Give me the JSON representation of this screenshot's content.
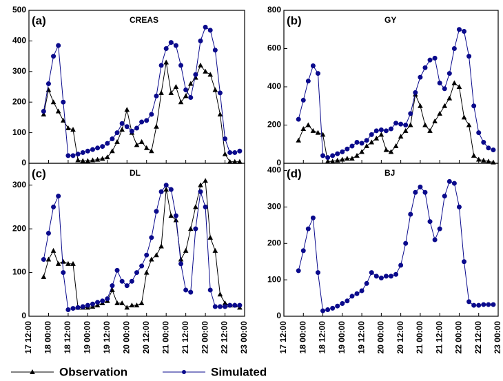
{
  "chart_data": [
    {
      "type": "line",
      "label": "(a)",
      "title": "CREAS",
      "x": [
        17.875,
        18,
        18.125,
        18.25,
        18.375,
        18.5,
        18.625,
        18.75,
        18.875,
        19,
        19.125,
        19.25,
        19.375,
        19.5,
        19.625,
        19.75,
        19.875,
        20,
        20.125,
        20.25,
        20.375,
        20.5,
        20.625,
        20.75,
        20.875,
        21,
        21.125,
        21.25,
        21.375,
        21.5,
        21.625,
        21.75,
        21.875,
        22,
        22.125,
        22.25,
        22.375,
        22.5,
        22.625,
        22.75,
        22.875
      ],
      "xlim": [
        17.5,
        23
      ],
      "xticks": [
        17.5,
        18,
        18.5,
        19,
        19.5,
        20,
        20.5,
        21,
        21.5,
        22,
        22.5,
        23
      ],
      "ylim": [
        0,
        500
      ],
      "yticks": [
        0,
        100,
        200,
        300,
        400,
        500
      ],
      "series": [
        {
          "name": "Observation",
          "color": "#000000",
          "marker": "triangle",
          "values": [
            160,
            240,
            200,
            170,
            140,
            115,
            110,
            10,
            8,
            8,
            10,
            12,
            15,
            20,
            40,
            70,
            110,
            175,
            100,
            60,
            70,
            50,
            40,
            120,
            230,
            330,
            230,
            250,
            200,
            220,
            260,
            280,
            320,
            300,
            290,
            240,
            160,
            30,
            5,
            5,
            5
          ]
        },
        {
          "name": "Simulated",
          "color": "#0a0a8c",
          "marker": "circle",
          "values": [
            170,
            260,
            350,
            385,
            200,
            25,
            25,
            30,
            35,
            40,
            45,
            50,
            55,
            65,
            80,
            100,
            130,
            120,
            105,
            115,
            135,
            140,
            160,
            220,
            320,
            375,
            395,
            385,
            320,
            240,
            215,
            290,
            400,
            445,
            435,
            370,
            230,
            80,
            35,
            35,
            40
          ]
        }
      ]
    },
    {
      "type": "line",
      "label": "(b)",
      "title": "GY",
      "x": [
        17.875,
        18,
        18.125,
        18.25,
        18.375,
        18.5,
        18.625,
        18.75,
        18.875,
        19,
        19.125,
        19.25,
        19.375,
        19.5,
        19.625,
        19.75,
        19.875,
        20,
        20.125,
        20.25,
        20.375,
        20.5,
        20.625,
        20.75,
        20.875,
        21,
        21.125,
        21.25,
        21.375,
        21.5,
        21.625,
        21.75,
        21.875,
        22,
        22.125,
        22.25,
        22.375,
        22.5,
        22.625,
        22.75,
        22.875
      ],
      "xlim": [
        17.5,
        23
      ],
      "xticks": [
        17.5,
        18,
        18.5,
        19,
        19.5,
        20,
        20.5,
        21,
        21.5,
        22,
        22.5,
        23
      ],
      "ylim": [
        0,
        800
      ],
      "yticks": [
        0,
        200,
        400,
        600,
        800
      ],
      "series": [
        {
          "name": "Observation",
          "color": "#000000",
          "marker": "triangle",
          "values": [
            120,
            180,
            200,
            170,
            160,
            150,
            10,
            10,
            15,
            20,
            25,
            25,
            40,
            60,
            90,
            110,
            130,
            150,
            70,
            60,
            90,
            140,
            170,
            200,
            360,
            300,
            200,
            170,
            220,
            260,
            300,
            340,
            420,
            400,
            240,
            200,
            40,
            20,
            15,
            10,
            5
          ]
        },
        {
          "name": "Simulated",
          "color": "#0a0a8c",
          "marker": "circle",
          "values": [
            230,
            330,
            430,
            510,
            470,
            40,
            30,
            40,
            50,
            60,
            75,
            90,
            110,
            105,
            120,
            150,
            170,
            175,
            170,
            180,
            210,
            205,
            200,
            260,
            370,
            450,
            500,
            540,
            550,
            420,
            390,
            470,
            600,
            700,
            690,
            560,
            300,
            160,
            110,
            80,
            70
          ]
        }
      ]
    },
    {
      "type": "line",
      "label": "(c)",
      "title": "DL",
      "x": [
        17.875,
        18,
        18.125,
        18.25,
        18.375,
        18.5,
        18.625,
        18.75,
        18.875,
        19,
        19.125,
        19.25,
        19.375,
        19.5,
        19.625,
        19.75,
        19.875,
        20,
        20.125,
        20.25,
        20.375,
        20.5,
        20.625,
        20.75,
        20.875,
        21,
        21.125,
        21.25,
        21.375,
        21.5,
        21.625,
        21.75,
        21.875,
        22,
        22.125,
        22.25,
        22.375,
        22.5,
        22.625,
        22.75,
        22.875
      ],
      "xlim": [
        17.5,
        23
      ],
      "xticks": [
        {
          "value": 17.5,
          "label": "17 12:00"
        },
        {
          "value": 18,
          "label": "18 00:00"
        },
        {
          "value": 18.5,
          "label": "18 12:00"
        },
        {
          "value": 19,
          "label": "19 00:00"
        },
        {
          "value": 19.5,
          "label": "19 12:00"
        },
        {
          "value": 20,
          "label": "20 00:00"
        },
        {
          "value": 20.5,
          "label": "20 12:00"
        },
        {
          "value": 21,
          "label": "21 00:00"
        },
        {
          "value": 21.5,
          "label": "21 12:00"
        },
        {
          "value": 22,
          "label": "22 00:00"
        },
        {
          "value": 22.5,
          "label": "22 12:00"
        },
        {
          "value": 23,
          "label": "23 00:00"
        }
      ],
      "ylim": [
        0,
        350
      ],
      "yticks": [
        0,
        100,
        200,
        300
      ],
      "series": [
        {
          "name": "Observation",
          "color": "#000000",
          "marker": "triangle",
          "values": [
            90,
            130,
            150,
            120,
            125,
            120,
            120,
            20,
            20,
            20,
            22,
            25,
            30,
            35,
            60,
            30,
            30,
            20,
            25,
            25,
            30,
            100,
            130,
            140,
            160,
            290,
            230,
            220,
            130,
            150,
            200,
            250,
            300,
            310,
            180,
            150,
            50,
            30,
            25,
            25,
            20
          ]
        },
        {
          "name": "Simulated",
          "color": "#0a0a8c",
          "marker": "circle",
          "values": [
            130,
            190,
            250,
            275,
            100,
            15,
            18,
            20,
            22,
            25,
            28,
            32,
            35,
            40,
            70,
            105,
            80,
            70,
            80,
            100,
            115,
            140,
            180,
            240,
            285,
            300,
            290,
            230,
            120,
            60,
            55,
            200,
            285,
            250,
            60,
            22,
            22,
            22,
            25,
            25,
            25
          ]
        }
      ]
    },
    {
      "type": "line",
      "label": "(d)",
      "title": "BJ",
      "x": [
        17.875,
        18,
        18.125,
        18.25,
        18.375,
        18.5,
        18.625,
        18.75,
        18.875,
        19,
        19.125,
        19.25,
        19.375,
        19.5,
        19.625,
        19.75,
        19.875,
        20,
        20.125,
        20.25,
        20.375,
        20.5,
        20.625,
        20.75,
        20.875,
        21,
        21.125,
        21.25,
        21.375,
        21.5,
        21.625,
        21.75,
        21.875,
        22,
        22.125,
        22.25,
        22.375,
        22.5,
        22.625,
        22.75,
        22.875
      ],
      "xlim": [
        17.5,
        23
      ],
      "xticks": [
        {
          "value": 17.5,
          "label": "17 12:00"
        },
        {
          "value": 18,
          "label": "18 00:00"
        },
        {
          "value": 18.5,
          "label": "18 12:00"
        },
        {
          "value": 19,
          "label": "19 00:00"
        },
        {
          "value": 19.5,
          "label": "19 12:00"
        },
        {
          "value": 20,
          "label": "20 00:00"
        },
        {
          "value": 20.5,
          "label": "20 12:00"
        },
        {
          "value": 21,
          "label": "21 00:00"
        },
        {
          "value": 21.5,
          "label": "21 12:00"
        },
        {
          "value": 22,
          "label": "22 00:00"
        },
        {
          "value": 22.5,
          "label": "22 12:00"
        },
        {
          "value": 23,
          "label": "23 00:00"
        }
      ],
      "ylim": [
        0,
        420
      ],
      "yticks": [
        0,
        100,
        200,
        300,
        400
      ],
      "series": [
        {
          "name": "Simulated",
          "color": "#0a0a8c",
          "marker": "circle",
          "values": [
            125,
            180,
            240,
            270,
            120,
            15,
            18,
            22,
            28,
            35,
            42,
            55,
            62,
            70,
            90,
            120,
            110,
            105,
            110,
            110,
            115,
            140,
            200,
            280,
            340,
            355,
            340,
            260,
            210,
            240,
            330,
            370,
            365,
            300,
            150,
            40,
            30,
            30,
            32,
            32,
            32
          ]
        }
      ]
    }
  ]
}
